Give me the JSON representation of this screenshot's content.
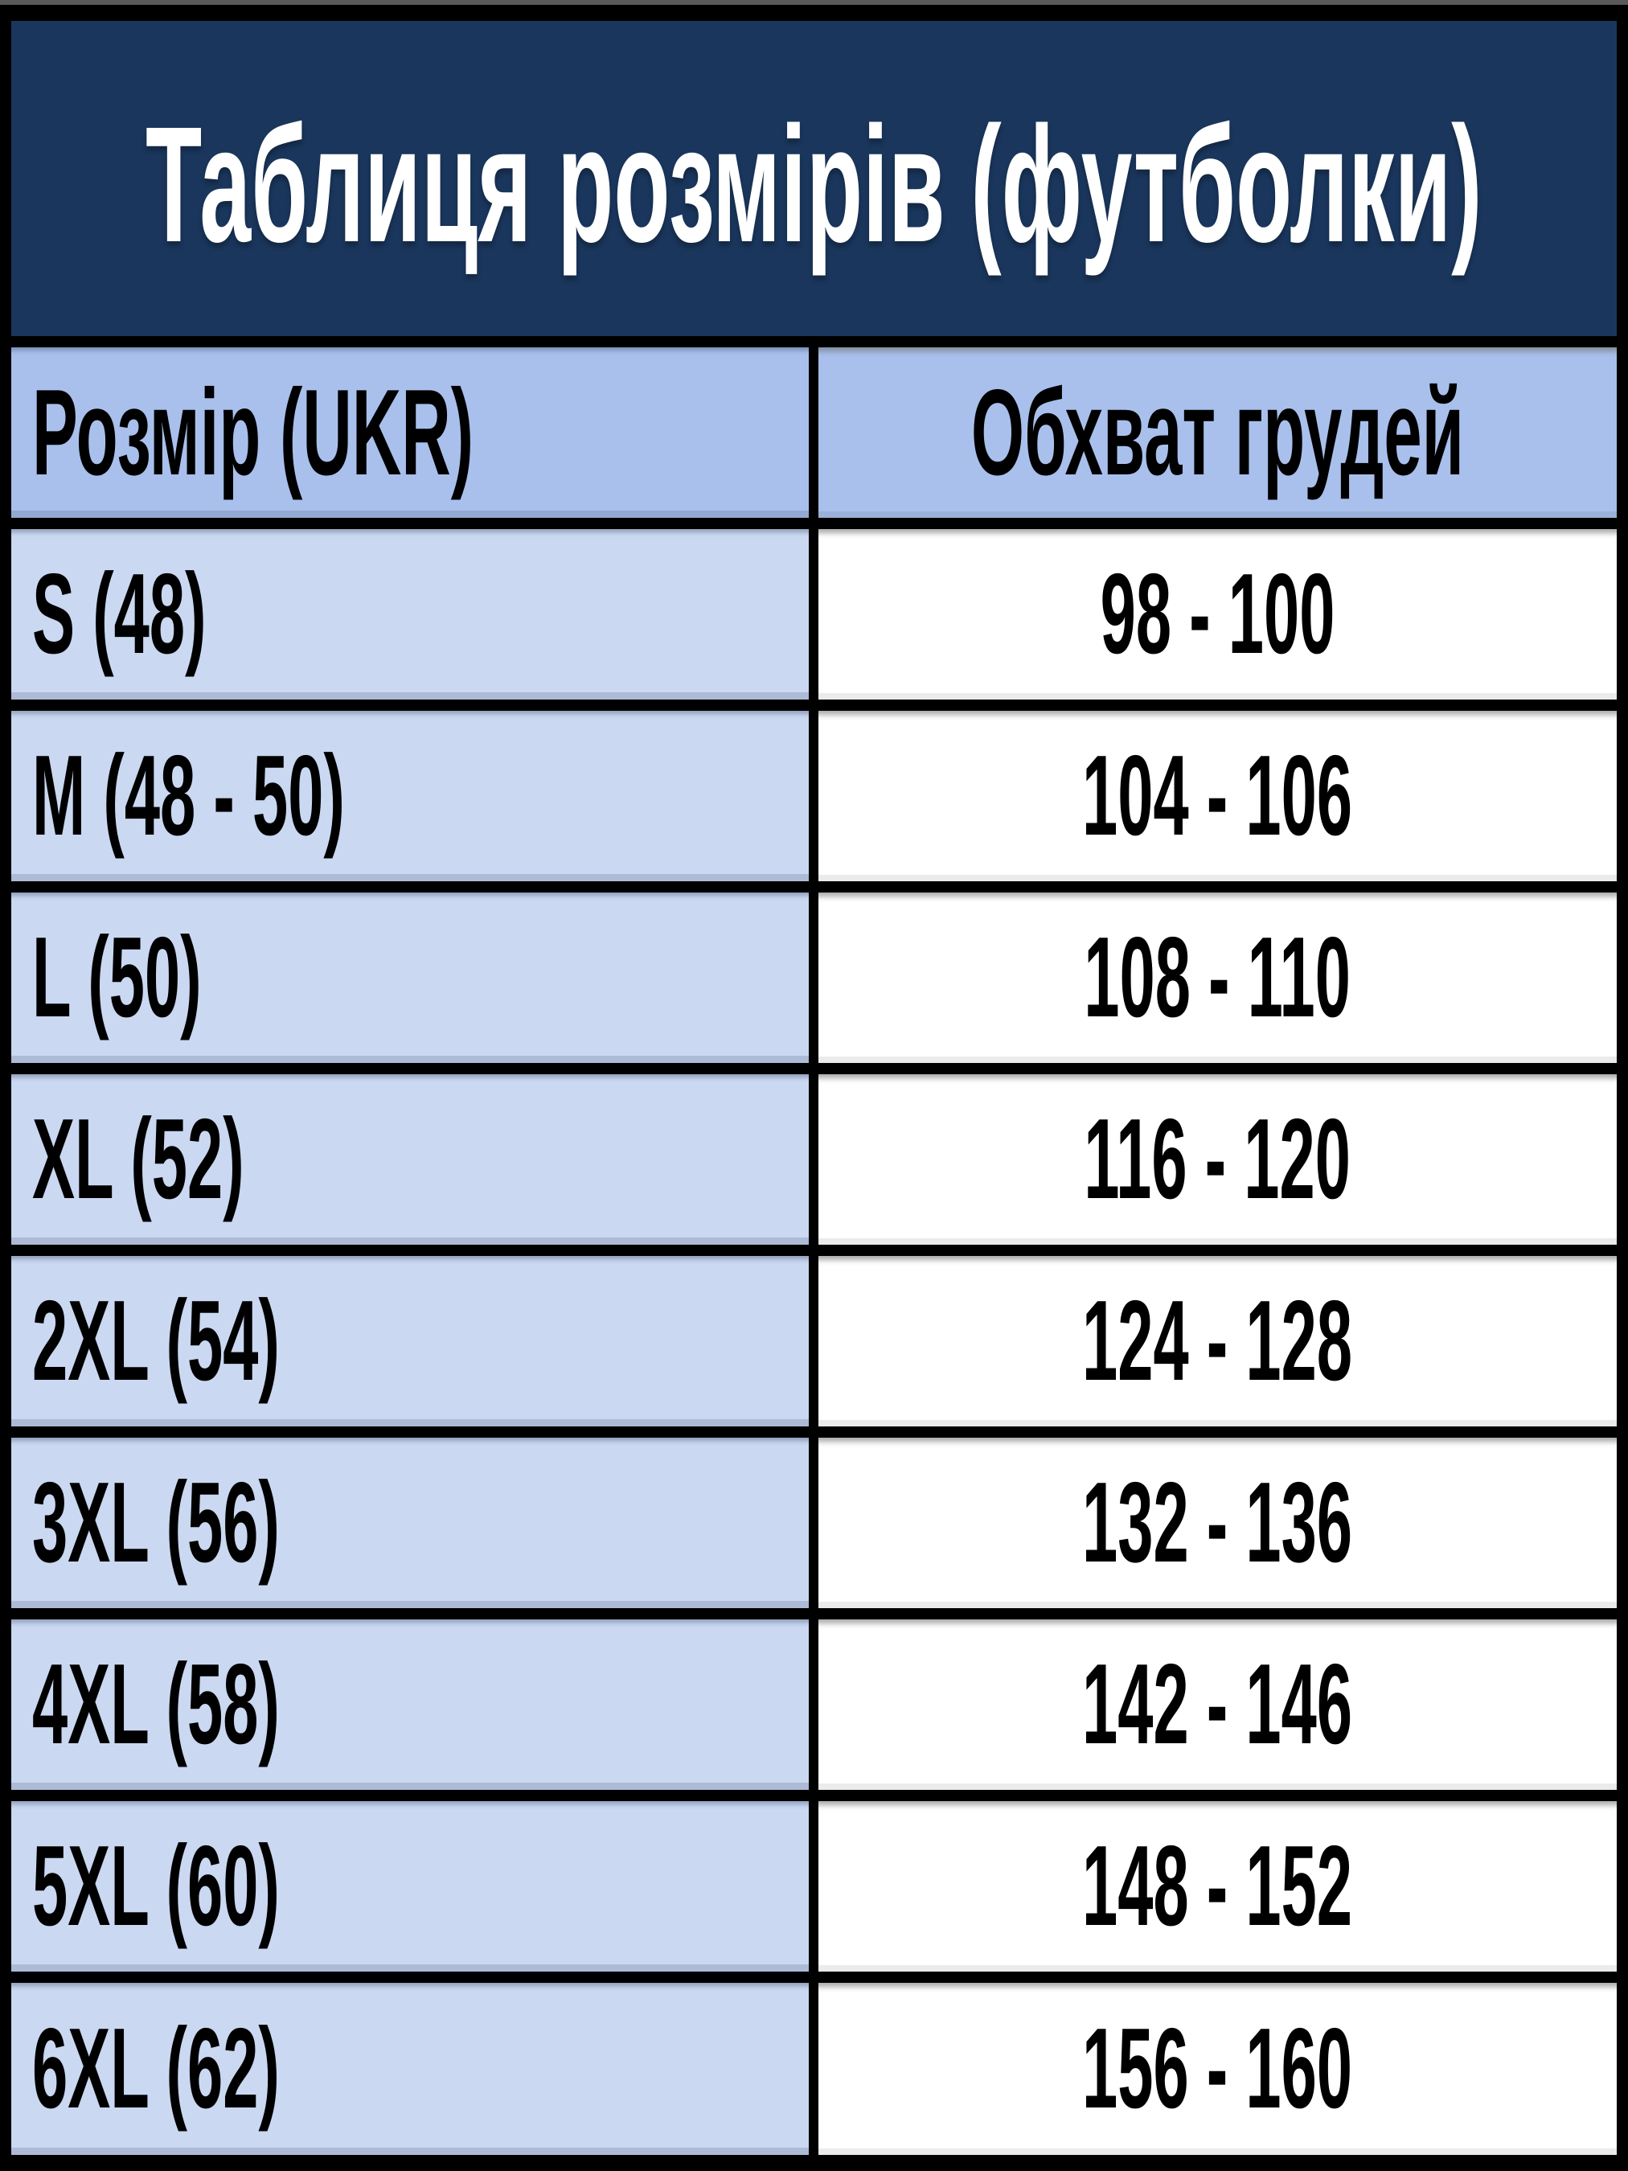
{
  "title": "Таблиця розмірів (футболки)",
  "header": {
    "size_label": "Розмір (UKR)",
    "chest_label": "Обхват грудей"
  },
  "rows": [
    {
      "size": "S (48)",
      "chest": "98 - 100"
    },
    {
      "size": "M (48 - 50)",
      "chest": "104 - 106"
    },
    {
      "size": "L (50)",
      "chest": "108 - 110"
    },
    {
      "size": "XL (52)",
      "chest": "116 - 120"
    },
    {
      "size": "2XL (54)",
      "chest": "124 - 128"
    },
    {
      "size": "3XL (56)",
      "chest": "132 - 136"
    },
    {
      "size": "4XL (58)",
      "chest": "142 - 146"
    },
    {
      "size": "5XL (60)",
      "chest": "148 - 152"
    },
    {
      "size": "6XL (62)",
      "chest": "156 - 160"
    }
  ],
  "colors": {
    "title_background": "#1A365C",
    "title_text": "#FFFFFF",
    "header_cell_background": "#A9C0EC",
    "size_cell_background": "#CAD8F1",
    "chest_cell_background": "#FFFFFF",
    "border": "#000000",
    "top_edge_strip": "#58595B",
    "cell_text": "#000000"
  },
  "chart_data": {
    "type": "table",
    "title": "Таблиця розмірів (футболки)",
    "columns": [
      "Розмір (UKR)",
      "Обхват грудей"
    ],
    "rows": [
      [
        "S (48)",
        "98 - 100"
      ],
      [
        "M (48 - 50)",
        "104 - 106"
      ],
      [
        "L (50)",
        "108 - 110"
      ],
      [
        "XL (52)",
        "116 - 120"
      ],
      [
        "2XL (54)",
        "124 - 128"
      ],
      [
        "3XL (56)",
        "132 - 136"
      ],
      [
        "4XL (58)",
        "142 - 146"
      ],
      [
        "5XL (60)",
        "148 - 152"
      ],
      [
        "6XL (62)",
        "156 - 160"
      ]
    ]
  }
}
